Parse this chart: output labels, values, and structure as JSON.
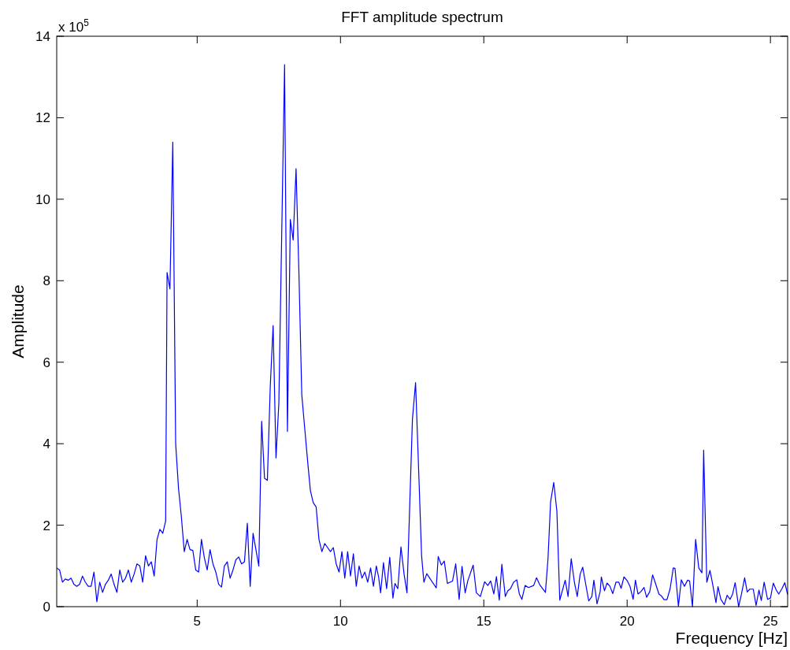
{
  "chart_data": {
    "type": "line",
    "title": "FFT amplitude spectrum",
    "xlabel": "Frequency [Hz]",
    "ylabel": "Amplitude",
    "annotations": [
      "x 10$^{5}$"
    ],
    "xlim": [
      0.1,
      25.6
    ],
    "xticks": [
      5,
      10,
      15,
      20,
      25
    ],
    "ylim": [
      0,
      14
    ],
    "yticks": [
      0,
      2,
      4,
      6,
      8,
      10,
      12,
      14
    ],
    "grid": false,
    "marker": "none",
    "line_style": "solid",
    "series": [
      {
        "color": "#0000ff",
        "x": [
          0.1,
          0.2,
          0.3,
          0.4,
          0.5,
          0.6,
          0.7,
          0.8,
          0.9,
          1.0,
          1.1,
          1.2,
          1.3,
          1.4,
          1.5,
          1.6,
          1.7,
          1.8,
          1.9,
          2.0,
          2.1,
          2.2,
          2.3,
          2.4,
          2.5,
          2.6,
          2.7,
          2.8,
          2.9,
          3.0,
          3.1,
          3.2,
          3.3,
          3.4,
          3.5,
          3.6,
          3.7,
          3.8,
          3.9,
          3.95,
          4.05,
          4.15,
          4.25,
          4.35,
          4.45,
          4.55,
          4.65,
          4.75,
          4.85,
          4.95,
          5.05,
          5.15,
          5.25,
          5.35,
          5.45,
          5.55,
          5.65,
          5.75,
          5.85,
          5.95,
          6.05,
          6.15,
          6.25,
          6.35,
          6.45,
          6.55,
          6.65,
          6.75,
          6.85,
          6.95,
          7.05,
          7.15,
          7.25,
          7.35,
          7.45,
          7.55,
          7.65,
          7.75,
          7.85,
          8.05,
          8.15,
          8.25,
          8.35,
          8.45,
          8.55,
          8.65,
          8.75,
          8.85,
          8.95,
          9.05,
          9.15,
          9.25,
          9.35,
          9.45,
          9.55,
          9.65,
          9.75,
          9.85,
          9.95,
          10.05,
          10.15,
          10.25,
          10.35,
          10.45,
          10.55,
          10.65,
          10.75,
          10.85,
          10.95,
          11.05,
          11.15,
          11.25,
          11.33,
          11.4,
          11.5,
          11.61,
          11.72,
          11.83,
          11.9,
          12.0,
          12.11,
          12.22,
          12.32,
          12.51,
          12.62,
          12.73,
          12.83,
          12.91,
          13.01,
          13.34,
          13.41,
          13.52,
          13.62,
          13.73,
          13.91,
          14.02,
          14.14,
          14.24,
          14.35,
          14.44,
          14.63,
          14.74,
          14.88,
          15.03,
          15.14,
          15.24,
          15.35,
          15.44,
          15.54,
          15.63,
          15.75,
          15.84,
          15.93,
          16.04,
          16.15,
          16.24,
          16.33,
          16.44,
          16.56,
          16.74,
          16.84,
          16.95,
          17.15,
          17.24,
          17.33,
          17.44,
          17.55,
          17.65,
          17.84,
          17.94,
          18.05,
          18.16,
          18.26,
          18.36,
          18.45,
          18.66,
          18.77,
          18.84,
          18.95,
          19.06,
          19.1,
          19.21,
          19.3,
          19.4,
          19.5,
          19.61,
          19.71,
          19.79,
          19.89,
          20.01,
          20.1,
          20.21,
          20.29,
          20.38,
          20.48,
          20.59,
          20.68,
          20.79,
          20.89,
          20.99,
          21.11,
          21.2,
          21.29,
          21.39,
          21.5,
          21.61,
          21.67,
          21.79,
          21.89,
          22.0,
          22.11,
          22.18,
          22.28,
          22.39,
          22.5,
          22.61,
          22.67,
          22.78,
          22.89,
          22.98,
          23.1,
          23.17,
          23.27,
          23.39,
          23.49,
          23.59,
          23.68,
          23.77,
          23.89,
          23.99,
          24.1,
          24.19,
          24.28,
          24.4,
          24.5,
          24.6,
          24.68,
          24.78,
          24.9,
          25.0,
          25.1,
          25.2,
          25.29,
          25.4,
          25.5,
          25.6
        ],
        "values": [
          0.95,
          0.9,
          0.6,
          0.68,
          0.65,
          0.7,
          0.55,
          0.5,
          0.55,
          0.75,
          0.6,
          0.5,
          0.5,
          0.85,
          0.12,
          0.6,
          0.35,
          0.55,
          0.65,
          0.8,
          0.55,
          0.35,
          0.9,
          0.6,
          0.7,
          0.9,
          0.6,
          0.8,
          1.05,
          1.0,
          0.6,
          1.25,
          1.0,
          1.1,
          0.75,
          1.65,
          1.9,
          1.8,
          2.1,
          8.2,
          7.8,
          11.4,
          4.0,
          2.9,
          2.2,
          1.35,
          1.65,
          1.4,
          1.38,
          0.9,
          0.85,
          1.65,
          1.2,
          0.9,
          1.4,
          1.05,
          0.85,
          0.55,
          0.48,
          1.0,
          1.1,
          0.7,
          0.9,
          1.15,
          1.22,
          1.05,
          1.1,
          2.05,
          0.5,
          1.8,
          1.4,
          1.0,
          4.55,
          3.15,
          3.1,
          5.4,
          6.9,
          3.65,
          5.0,
          13.3,
          4.3,
          9.5,
          9.0,
          10.75,
          8.2,
          5.2,
          4.4,
          3.6,
          2.85,
          2.55,
          2.45,
          1.65,
          1.35,
          1.55,
          1.45,
          1.35,
          1.45,
          1.05,
          0.85,
          1.35,
          0.7,
          1.35,
          0.75,
          1.3,
          0.5,
          1.0,
          0.7,
          0.85,
          0.6,
          0.95,
          0.5,
          1.0,
          0.73,
          0.34,
          1.08,
          0.44,
          1.21,
          0.21,
          0.57,
          0.44,
          1.47,
          0.79,
          0.34,
          4.6,
          5.5,
          3.3,
          1.25,
          0.6,
          0.81,
          0.46,
          1.23,
          1.02,
          1.12,
          0.57,
          0.63,
          1.05,
          0.18,
          0.99,
          0.34,
          0.63,
          1.02,
          0.34,
          0.25,
          0.61,
          0.52,
          0.63,
          0.31,
          0.74,
          0.16,
          1.04,
          0.25,
          0.39,
          0.44,
          0.6,
          0.66,
          0.31,
          0.18,
          0.52,
          0.47,
          0.52,
          0.71,
          0.54,
          0.35,
          1.18,
          2.57,
          3.05,
          2.34,
          0.16,
          0.65,
          0.25,
          1.18,
          0.6,
          0.25,
          0.79,
          0.97,
          0.14,
          0.25,
          0.65,
          0.07,
          0.37,
          0.73,
          0.39,
          0.58,
          0.5,
          0.32,
          0.6,
          0.6,
          0.45,
          0.73,
          0.63,
          0.5,
          0.18,
          0.65,
          0.31,
          0.37,
          0.47,
          0.23,
          0.37,
          0.78,
          0.57,
          0.31,
          0.26,
          0.17,
          0.17,
          0.44,
          0.95,
          0.94,
          0.01,
          0.66,
          0.5,
          0.65,
          0.63,
          0.0,
          1.65,
          0.95,
          0.83,
          3.84,
          0.6,
          0.89,
          0.57,
          0.1,
          0.49,
          0.18,
          0.05,
          0.28,
          0.18,
          0.31,
          0.59,
          0.0,
          0.31,
          0.71,
          0.36,
          0.43,
          0.43,
          0.03,
          0.41,
          0.15,
          0.6,
          0.18,
          0.21,
          0.58,
          0.41,
          0.31,
          0.44,
          0.59,
          0.3
        ]
      }
    ]
  }
}
